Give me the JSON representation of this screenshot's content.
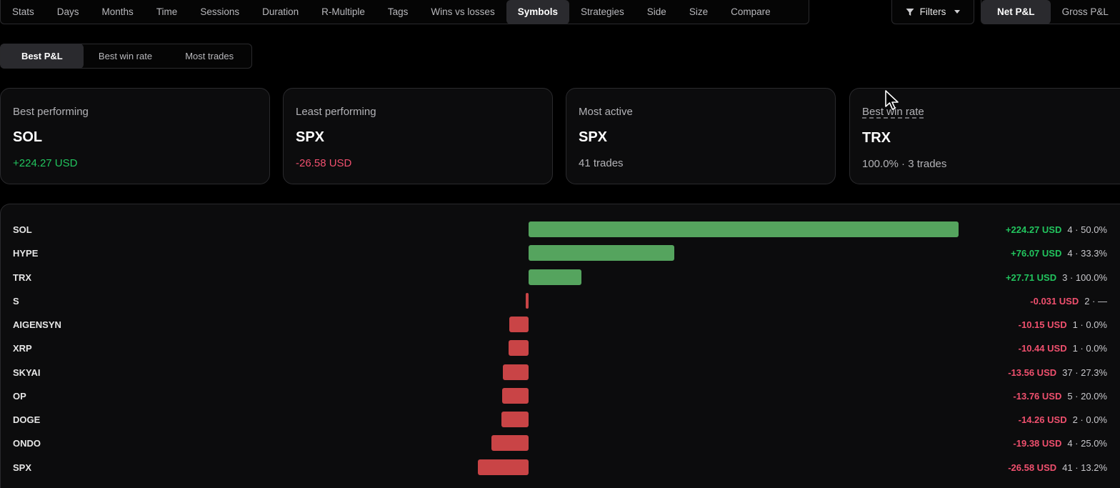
{
  "nav": {
    "tabs": [
      "Stats",
      "Days",
      "Months",
      "Time",
      "Sessions",
      "Duration",
      "R-Multiple",
      "Tags",
      "Wins vs losses",
      "Symbols",
      "Strategies",
      "Side",
      "Size",
      "Compare"
    ],
    "active": "Symbols"
  },
  "filters": {
    "label": "Filters",
    "icon": "filter-icon"
  },
  "pnl_toggle": {
    "options": [
      "Net P&L",
      "Gross P&L"
    ],
    "active": "Net P&L"
  },
  "sort": {
    "options": [
      "Best P&L",
      "Best win rate",
      "Most trades"
    ],
    "active": "Best P&L"
  },
  "cards": [
    {
      "label": "Best performing",
      "value": "SOL",
      "sub": "+224.27 USD",
      "tone": "pos"
    },
    {
      "label": "Least performing",
      "value": "SPX",
      "sub": "-26.58 USD",
      "tone": "neg"
    },
    {
      "label": "Most active",
      "value": "SPX",
      "sub": "41 trades",
      "tone": "neutral"
    },
    {
      "label": "Best win rate",
      "value": "TRX",
      "sub": "100.0% · 3 trades",
      "tone": "neutral"
    }
  ],
  "colors": {
    "positive": "#22c55e",
    "negative": "#f0506e",
    "bar_positive": "#55a45e",
    "bar_negative": "#c94446"
  },
  "chart_data": {
    "type": "bar",
    "orientation": "horizontal",
    "categories": [
      "SOL",
      "HYPE",
      "TRX",
      "S",
      "AIGENSYN",
      "XRP",
      "SKYAI",
      "OP",
      "DOGE",
      "ONDO",
      "SPX"
    ],
    "values": [
      224.27,
      76.07,
      27.71,
      -0.031,
      -10.15,
      -10.44,
      -13.56,
      -13.76,
      -14.26,
      -19.38,
      -26.58
    ],
    "labels": [
      "+224.27 USD",
      "+76.07 USD",
      "+27.71 USD",
      "-0.031 USD",
      "-10.15 USD",
      "-10.44 USD",
      "-13.56 USD",
      "-13.76 USD",
      "-14.26 USD",
      "-19.38 USD",
      "-26.58 USD"
    ],
    "meta": [
      "4 · 50.0%",
      "4 · 33.3%",
      "3 · 100.0%",
      "2 · —",
      "1 · 0.0%",
      "1 · 0.0%",
      "37 · 27.3%",
      "5 · 20.0%",
      "2 · 0.0%",
      "4 · 25.0%",
      "41 · 13.2%"
    ]
  }
}
